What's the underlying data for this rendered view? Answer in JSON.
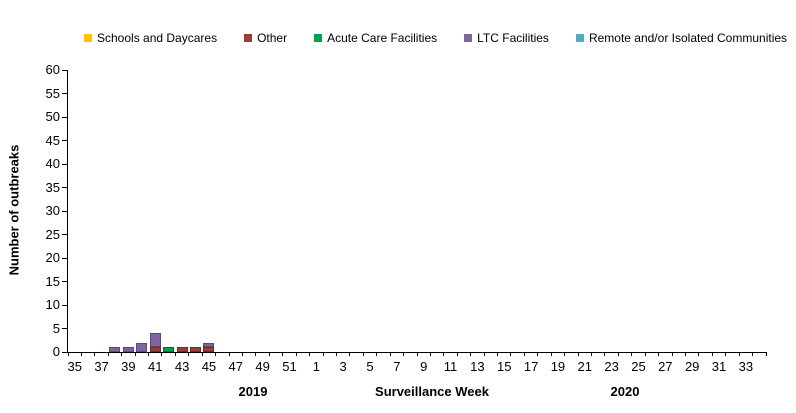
{
  "chart_data": {
    "type": "bar",
    "stacked": true,
    "title": "",
    "ylabel": "Number of outbreaks",
    "xlabel": "Surveillance Week",
    "ylim": [
      0,
      60
    ],
    "ytick_step": 5,
    "grid": false,
    "legend_position": "top",
    "x_axis": {
      "label_interval": 2,
      "groups": [
        {
          "year": "2019",
          "weeks": [
            35,
            36,
            37,
            38,
            39,
            40,
            41,
            42,
            43,
            44,
            45,
            46,
            47,
            48,
            49,
            50,
            51,
            52
          ]
        },
        {
          "year": "2020",
          "weeks": [
            1,
            2,
            3,
            4,
            5,
            6,
            7,
            8,
            9,
            10,
            11,
            12,
            13,
            14,
            15,
            16,
            17,
            18,
            19,
            20,
            21,
            22,
            23,
            24,
            25,
            26,
            27,
            28,
            29,
            30,
            31,
            32,
            33,
            34
          ]
        }
      ]
    },
    "year_labels": {
      "left": "2019",
      "right": "2020"
    },
    "series": [
      {
        "name": "Schools and Daycares",
        "color": "#FFC000",
        "border": "#B38600",
        "values": {}
      },
      {
        "name": "Other",
        "color": "#9E3D38",
        "border": "#6E2A27",
        "values": {
          "2019-41": 1,
          "2019-43": 1,
          "2019-44": 1,
          "2019-45": 1
        }
      },
      {
        "name": "Acute Care Facilities",
        "color": "#00A14D",
        "border": "#006B33",
        "values": {
          "2019-42": 1
        }
      },
      {
        "name": "LTC Facilities",
        "color": "#8064A2",
        "border": "#5D4776",
        "values": {
          "2019-38": 1,
          "2019-39": 1,
          "2019-40": 2,
          "2019-41": 3,
          "2019-45": 1
        }
      },
      {
        "name": "Remote and/or Isolated Communities",
        "color": "#4BACC6",
        "border": "#31859C",
        "values": {}
      }
    ]
  }
}
